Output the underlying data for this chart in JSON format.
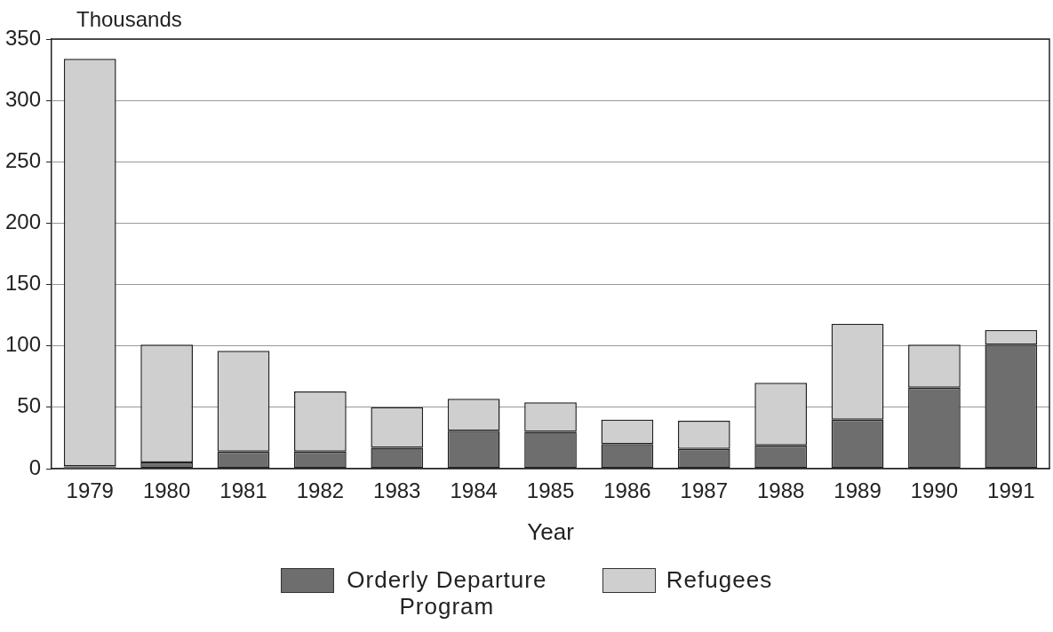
{
  "chart_data": {
    "type": "bar",
    "stacked": true,
    "ylabel": "Thousands",
    "xlabel": "Year",
    "categories": [
      "1979",
      "1980",
      "1981",
      "1982",
      "1983",
      "1984",
      "1985",
      "1986",
      "1987",
      "1988",
      "1989",
      "1990",
      "1991"
    ],
    "series": [
      {
        "name": "Orderly Departure Program",
        "color": "#6e6e6e",
        "values": [
          2,
          5,
          14,
          14,
          17,
          31,
          30,
          20,
          16,
          19,
          40,
          66,
          101
        ]
      },
      {
        "name": "Refugees",
        "color": "#cfcfcf",
        "values": [
          332,
          96,
          82,
          49,
          33,
          26,
          24,
          20,
          23,
          51,
          78,
          35,
          12
        ]
      }
    ],
    "ylim": [
      0,
      350
    ],
    "yticks": [
      0,
      50,
      100,
      150,
      200,
      250,
      300,
      350
    ],
    "grid": "y",
    "legend": "bottom"
  }
}
